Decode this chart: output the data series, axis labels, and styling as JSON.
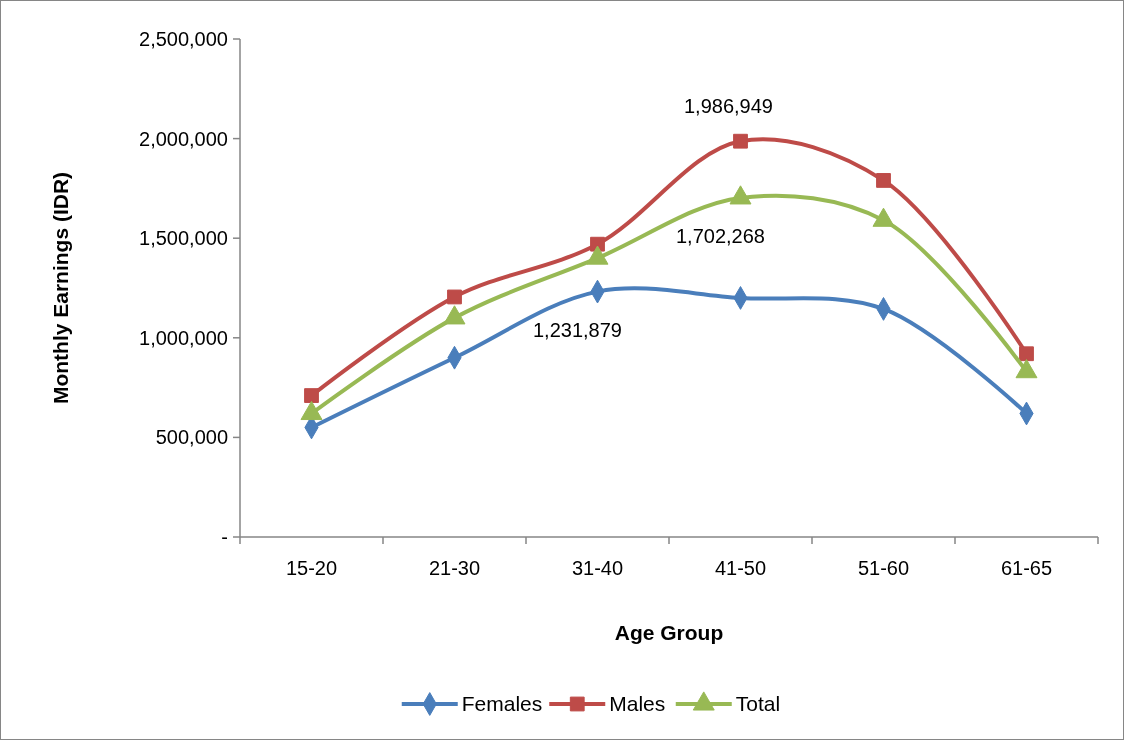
{
  "chart_data": {
    "type": "line",
    "xlabel": "Age Group",
    "ylabel": "Monthly Earnings (IDR)",
    "categories": [
      "15-20",
      "21-30",
      "31-40",
      "41-50",
      "51-60",
      "61-65"
    ],
    "ylim": [
      0,
      2500000
    ],
    "yticks": [
      {
        "value": 0,
        "label": "-"
      },
      {
        "value": 500000,
        "label": "500,000"
      },
      {
        "value": 1000000,
        "label": "1,000,000"
      },
      {
        "value": 1500000,
        "label": "1,500,000"
      },
      {
        "value": 2000000,
        "label": "2,000,000"
      },
      {
        "value": 2500000,
        "label": "2,500,000"
      }
    ],
    "grid": false,
    "legend": "bottom",
    "line_style": "solid",
    "series": [
      {
        "name": "Females",
        "color": "#4a7ebb",
        "marker": "diamond",
        "values": [
          550000,
          900000,
          1231879,
          1200000,
          1145000,
          620000
        ],
        "value_labels": [
          null,
          null,
          "1,231,879",
          null,
          null,
          null
        ]
      },
      {
        "name": "Males",
        "color": "#be4b48",
        "marker": "square",
        "values": [
          710000,
          1205000,
          1470000,
          1986949,
          1790000,
          920000
        ],
        "value_labels": [
          null,
          null,
          null,
          "1,986,949",
          null,
          null
        ]
      },
      {
        "name": "Total",
        "color": "#98b954",
        "marker": "triangle",
        "values": [
          620000,
          1100000,
          1400000,
          1702268,
          1590000,
          830000
        ],
        "value_labels": [
          null,
          null,
          null,
          "1,702,268",
          null,
          null
        ]
      }
    ]
  }
}
